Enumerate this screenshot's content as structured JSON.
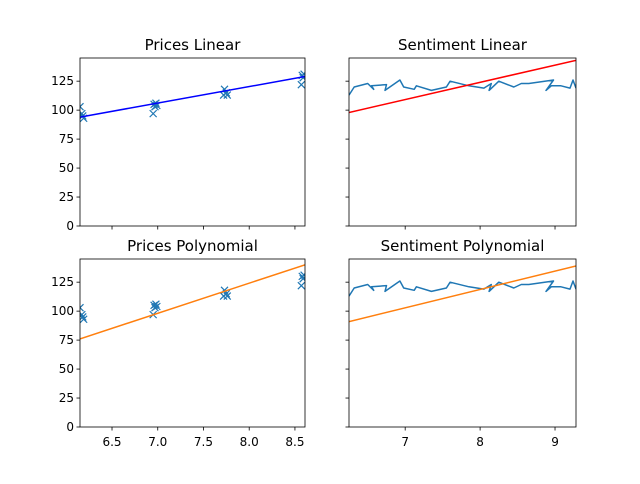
{
  "chart_data": [
    {
      "type": "scatter",
      "title": "Prices Linear",
      "xlim": [
        6.15,
        8.61
      ],
      "ylim": [
        0,
        145
      ],
      "xticks": [
        6.5,
        7.0,
        7.5,
        8.0,
        8.5
      ],
      "yticks": [
        0,
        25,
        50,
        75,
        100,
        125
      ],
      "show_xtick_labels": false,
      "show_ytick_labels": true,
      "series": [
        {
          "kind": "scatter",
          "marker": "x",
          "color": "#1f77b4",
          "x": [
            6.15,
            6.17,
            6.18,
            6.19,
            6.95,
            6.96,
            6.97,
            6.98,
            6.99,
            7.72,
            7.73,
            7.75,
            7.76,
            8.57,
            8.58,
            8.59,
            8.6
          ],
          "y": [
            103,
            97,
            95,
            93,
            97,
            105,
            103,
            106,
            104,
            113,
            118,
            115,
            113,
            122,
            130,
            128,
            131
          ]
        },
        {
          "kind": "line",
          "color": "#0000ff",
          "x": [
            6.15,
            8.61
          ],
          "y": [
            94,
            129
          ]
        }
      ]
    },
    {
      "type": "line",
      "title": "Sentiment Linear",
      "xlim": [
        6.25,
        9.28
      ],
      "ylim": [
        0,
        145
      ],
      "xticks": [
        7,
        8,
        9
      ],
      "yticks": [
        0,
        25,
        50,
        75,
        100,
        125
      ],
      "show_xtick_labels": false,
      "show_ytick_labels": false,
      "series": [
        {
          "kind": "line",
          "color": "#1f77b4",
          "x": [
            6.25,
            6.32,
            6.5,
            6.58,
            6.55,
            6.75,
            6.73,
            6.93,
            6.98,
            7.12,
            7.15,
            7.35,
            7.55,
            7.6,
            7.85,
            8.05,
            8.15,
            8.12,
            8.25,
            8.45,
            8.55,
            8.65,
            8.98,
            8.88,
            8.95,
            9.08,
            9.2,
            9.24,
            9.28
          ],
          "y": [
            113,
            120,
            123,
            118,
            121,
            122,
            117,
            126,
            120,
            118,
            121,
            117,
            120,
            125,
            121,
            119,
            123,
            117,
            125,
            120,
            123,
            123,
            126,
            117,
            121,
            121,
            119,
            126,
            119
          ]
        },
        {
          "kind": "line",
          "color": "#ff0000",
          "x": [
            6.25,
            9.28
          ],
          "y": [
            98,
            143
          ]
        }
      ]
    },
    {
      "type": "scatter",
      "title": "Prices Polynomial",
      "xlim": [
        6.15,
        8.61
      ],
      "ylim": [
        0,
        145
      ],
      "xticks": [
        6.5,
        7.0,
        7.5,
        8.0,
        8.5
      ],
      "yticks": [
        0,
        25,
        50,
        75,
        100,
        125
      ],
      "show_xtick_labels": true,
      "show_ytick_labels": true,
      "series": [
        {
          "kind": "scatter",
          "marker": "x",
          "color": "#1f77b4",
          "x": [
            6.15,
            6.17,
            6.18,
            6.19,
            6.95,
            6.96,
            6.97,
            6.98,
            6.99,
            7.72,
            7.73,
            7.75,
            7.76,
            8.57,
            8.58,
            8.59,
            8.6
          ],
          "y": [
            103,
            97,
            95,
            93,
            97,
            105,
            103,
            106,
            104,
            113,
            118,
            115,
            113,
            122,
            130,
            128,
            131
          ]
        },
        {
          "kind": "line",
          "color": "#ff7f0e",
          "x": [
            6.15,
            8.61
          ],
          "y": [
            76,
            140
          ]
        }
      ]
    },
    {
      "type": "line",
      "title": "Sentiment Polynomial",
      "xlim": [
        6.25,
        9.28
      ],
      "ylim": [
        0,
        145
      ],
      "xticks": [
        7,
        8,
        9
      ],
      "yticks": [
        0,
        25,
        50,
        75,
        100,
        125
      ],
      "show_xtick_labels": true,
      "show_ytick_labels": false,
      "series": [
        {
          "kind": "line",
          "color": "#1f77b4",
          "x": [
            6.25,
            6.32,
            6.5,
            6.58,
            6.55,
            6.75,
            6.73,
            6.93,
            6.98,
            7.12,
            7.15,
            7.35,
            7.55,
            7.6,
            7.85,
            8.05,
            8.15,
            8.12,
            8.25,
            8.45,
            8.55,
            8.65,
            8.98,
            8.88,
            8.95,
            9.08,
            9.2,
            9.24,
            9.28
          ],
          "y": [
            113,
            120,
            123,
            118,
            121,
            122,
            117,
            126,
            120,
            118,
            121,
            117,
            120,
            125,
            121,
            119,
            123,
            117,
            125,
            120,
            123,
            123,
            126,
            117,
            121,
            121,
            119,
            126,
            119
          ]
        },
        {
          "kind": "line",
          "color": "#ff7f0e",
          "x": [
            6.25,
            9.28
          ],
          "y": [
            91,
            139
          ]
        }
      ]
    }
  ]
}
